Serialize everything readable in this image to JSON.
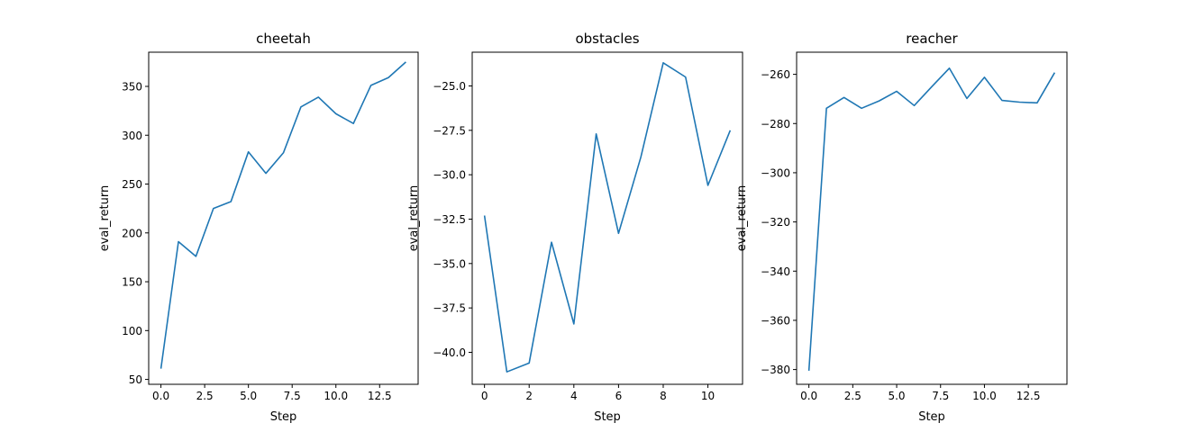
{
  "figure": {
    "background": "#ffffff",
    "line_color": "#1f77b4"
  },
  "chart_data": [
    {
      "type": "line",
      "title": "cheetah",
      "xlabel": "Step",
      "ylabel": "eval_return",
      "xlim": [
        -0.7,
        14.7
      ],
      "ylim": [
        45,
        385
      ],
      "xticks": [
        0,
        2.5,
        5,
        7.5,
        10,
        12.5
      ],
      "xtick_labels": [
        "0.0",
        "2.5",
        "5.0",
        "7.5",
        "10.0",
        "12.5"
      ],
      "yticks": [
        50,
        100,
        150,
        200,
        250,
        300,
        350
      ],
      "ytick_labels": [
        "50",
        "100",
        "150",
        "200",
        "250",
        "300",
        "350"
      ],
      "grid": false,
      "series": [
        {
          "x": [
            0,
            1,
            2,
            3,
            4,
            5,
            6,
            7,
            8,
            9,
            10,
            11,
            12,
            13,
            14
          ],
          "y": [
            61,
            191,
            176,
            225,
            232,
            283,
            261,
            282,
            329,
            339,
            322,
            312,
            351,
            359,
            375
          ]
        }
      ]
    },
    {
      "type": "line",
      "title": "obstacles",
      "xlabel": "Step",
      "ylabel": "eval_return",
      "xlim": [
        -0.55,
        11.55
      ],
      "ylim": [
        -41.8,
        -23.1
      ],
      "xticks": [
        0,
        2,
        4,
        6,
        8,
        10
      ],
      "xtick_labels": [
        "0",
        "2",
        "4",
        "6",
        "8",
        "10"
      ],
      "yticks": [
        -40.0,
        -37.5,
        -35.0,
        -32.5,
        -30.0,
        -27.5,
        -25.0
      ],
      "ytick_labels": [
        "−40.0",
        "−37.5",
        "−35.0",
        "−32.5",
        "−30.0",
        "−27.5",
        "−25.0"
      ],
      "grid": false,
      "series": [
        {
          "x": [
            0,
            1,
            2,
            3,
            4,
            5,
            6,
            7,
            8,
            9,
            10,
            11
          ],
          "y": [
            -32.3,
            -41.1,
            -40.6,
            -33.8,
            -38.4,
            -27.7,
            -33.3,
            -29.0,
            -23.7,
            -24.5,
            -30.6,
            -27.5
          ]
        }
      ]
    },
    {
      "type": "line",
      "title": "reacher",
      "xlabel": "Step",
      "ylabel": "eval_return",
      "xlim": [
        -0.7,
        14.7
      ],
      "ylim": [
        -386,
        -251
      ],
      "xticks": [
        0,
        2.5,
        5,
        7.5,
        10,
        12.5
      ],
      "xtick_labels": [
        "0.0",
        "2.5",
        "5.0",
        "7.5",
        "10.0",
        "12.5"
      ],
      "yticks": [
        -380,
        -360,
        -340,
        -320,
        -300,
        -280,
        -260
      ],
      "ytick_labels": [
        "−380",
        "−360",
        "−340",
        "−320",
        "−300",
        "−280",
        "−260"
      ],
      "grid": false,
      "series": [
        {
          "x": [
            0,
            1,
            2,
            3,
            4,
            5,
            6,
            7,
            8,
            9,
            10,
            11,
            12,
            13,
            14
          ],
          "y": [
            -380.5,
            -273.8,
            -269.4,
            -273.8,
            -270.8,
            -266.9,
            -272.7,
            -265.0,
            -257.5,
            -269.8,
            -261.2,
            -270.6,
            -271.3,
            -271.6,
            -259.3
          ]
        }
      ]
    }
  ]
}
